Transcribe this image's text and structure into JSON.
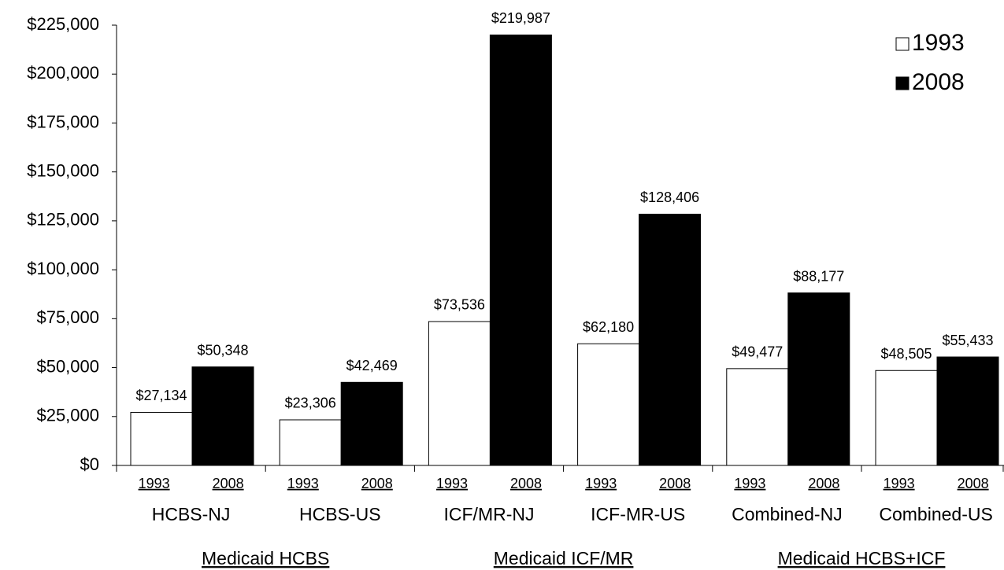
{
  "chart_data": {
    "type": "bar",
    "categories": [
      "HCBS-NJ",
      "HCBS-US",
      "ICF/MR-NJ",
      "ICF-MR-US",
      "Combined-NJ",
      "Combined-US"
    ],
    "groups": [
      "Medicaid HCBS",
      "Medicaid ICF/MR",
      "Medicaid HCBS+ICF"
    ],
    "series": [
      {
        "name": "1993",
        "color": "#ffffff",
        "values": [
          27134,
          23306,
          73536,
          62180,
          49477,
          48505
        ],
        "value_labels": [
          "$27,134",
          "$23,306",
          "$73,536",
          "$62,180",
          "$49,477",
          "$48,505"
        ]
      },
      {
        "name": "2008",
        "color": "#000000",
        "values": [
          50348,
          42469,
          219987,
          128406,
          88177,
          55433
        ],
        "value_labels": [
          "$50,348",
          "$42,469",
          "$219,987",
          "$128,406",
          "$88,177",
          "$55,433"
        ]
      }
    ],
    "ylim": [
      0,
      225000
    ],
    "yticks": [
      {
        "value": 0,
        "label": "$0"
      },
      {
        "value": 25000,
        "label": "$25,000"
      },
      {
        "value": 50000,
        "label": "$50,000"
      },
      {
        "value": 75000,
        "label": "$75,000"
      },
      {
        "value": 100000,
        "label": "$100,000"
      },
      {
        "value": 125000,
        "label": "$125,000"
      },
      {
        "value": 150000,
        "label": "$150,000"
      },
      {
        "value": 175000,
        "label": "$175,000"
      },
      {
        "value": 200000,
        "label": "$200,000"
      },
      {
        "value": 225000,
        "label": "$225,000"
      }
    ],
    "grid": false,
    "legend": "top-right"
  }
}
